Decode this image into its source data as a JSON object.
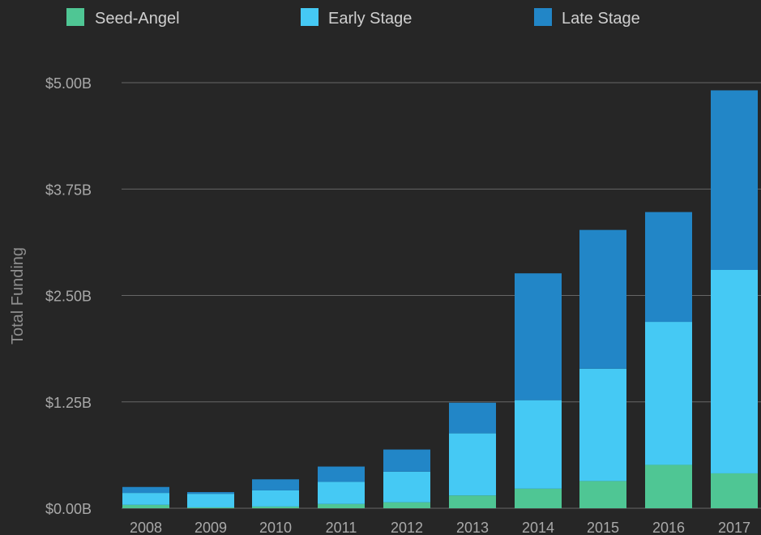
{
  "chart_data": {
    "type": "bar",
    "stacked": true,
    "categories": [
      "2008",
      "2009",
      "2010",
      "2011",
      "2012",
      "2013",
      "2014",
      "2015",
      "2016",
      "2017"
    ],
    "series": [
      {
        "name": "Seed-Angel",
        "color": "#4fc694",
        "values": [
          0.04,
          0.01,
          0.02,
          0.05,
          0.07,
          0.15,
          0.23,
          0.32,
          0.51,
          0.41
        ]
      },
      {
        "name": "Early Stage",
        "color": "#45c9f4",
        "values": [
          0.14,
          0.16,
          0.19,
          0.26,
          0.36,
          0.73,
          1.04,
          1.32,
          1.68,
          2.39
        ]
      },
      {
        "name": "Late Stage",
        "color": "#2286c7",
        "values": [
          0.07,
          0.02,
          0.13,
          0.18,
          0.26,
          0.36,
          1.49,
          1.63,
          1.29,
          2.11
        ]
      }
    ],
    "ylabel": "Total Funding",
    "yticks": [
      "$0.00B",
      "$1.25B",
      "$2.50B",
      "$3.75B",
      "$5.00B"
    ],
    "ytick_values": [
      0,
      1.25,
      2.5,
      3.75,
      5
    ],
    "ylim": [
      0,
      5
    ],
    "legend_position": "top",
    "grid": true,
    "colors": {
      "background": "#262626",
      "grid": "#666666",
      "text": "#cfcfcf",
      "tick_text": "#a9a9a9",
      "axis_title": "#8e8e8e"
    }
  }
}
